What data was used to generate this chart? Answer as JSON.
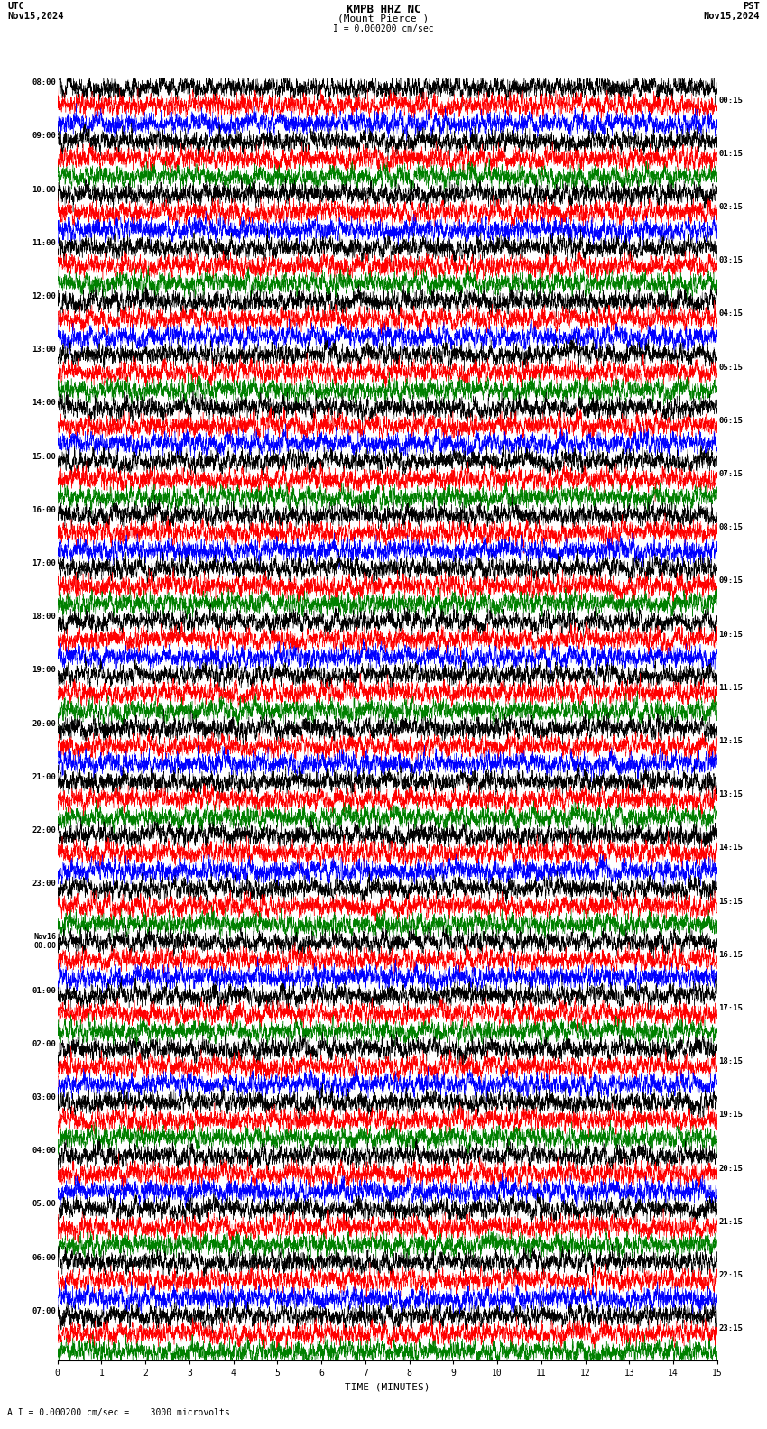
{
  "title_line1": "KMPB HHZ NC",
  "title_line2": "(Mount Pierce )",
  "scale_label": "I = 0.000200 cm/sec",
  "label_utc_top": "UTC",
  "label_utc_date": "Nov15,2024",
  "label_pst_top": "PST",
  "label_pst_date": "Nov15,2024",
  "bottom_label": "A I = 0.000200 cm/sec =    3000 microvolts",
  "xlabel": "TIME (MINUTES)",
  "left_labels_utc": [
    "08:00",
    "09:00",
    "10:00",
    "11:00",
    "12:00",
    "13:00",
    "14:00",
    "15:00",
    "16:00",
    "17:00",
    "18:00",
    "19:00",
    "20:00",
    "21:00",
    "22:00",
    "23:00",
    "Nov16\n00:00",
    "01:00",
    "02:00",
    "03:00",
    "04:00",
    "05:00",
    "06:00",
    "07:00"
  ],
  "right_labels_pst": [
    "00:15",
    "01:15",
    "02:15",
    "03:15",
    "04:15",
    "05:15",
    "06:15",
    "07:15",
    "08:15",
    "09:15",
    "10:15",
    "11:15",
    "12:15",
    "13:15",
    "14:15",
    "15:15",
    "16:15",
    "17:15",
    "18:15",
    "19:15",
    "20:15",
    "21:15",
    "22:15",
    "23:15"
  ],
  "n_rows": 24,
  "traces_per_row": 3,
  "minutes_per_row": 15,
  "row_color_sets": [
    [
      "black",
      "red",
      "blue"
    ],
    [
      "black",
      "red",
      "blue"
    ],
    [
      "black",
      "red",
      "blue"
    ],
    [
      "black",
      "red",
      "blue"
    ],
    [
      "black",
      "red",
      "blue"
    ],
    [
      "black",
      "red",
      "blue"
    ],
    [
      "black",
      "red",
      "blue"
    ],
    [
      "black",
      "red",
      "blue"
    ],
    [
      "black",
      "red",
      "blue"
    ],
    [
      "black",
      "red",
      "blue"
    ],
    [
      "black",
      "red",
      "blue"
    ],
    [
      "black",
      "red",
      "blue"
    ],
    [
      "black",
      "red",
      "blue"
    ],
    [
      "black",
      "red",
      "blue"
    ],
    [
      "black",
      "red",
      "blue"
    ],
    [
      "black",
      "red",
      "blue"
    ],
    [
      "black",
      "red",
      "blue"
    ],
    [
      "black",
      "red",
      "blue"
    ],
    [
      "black",
      "red",
      "blue"
    ],
    [
      "black",
      "red",
      "blue"
    ],
    [
      "black",
      "red",
      "blue"
    ],
    [
      "black",
      "red",
      "blue"
    ],
    [
      "black",
      "red",
      "blue"
    ],
    [
      "black",
      "red",
      "blue"
    ]
  ],
  "bg_color": "white",
  "trace_linewidth": 0.3,
  "noise_std": 1.0,
  "xticks": [
    0,
    1,
    2,
    3,
    4,
    5,
    6,
    7,
    8,
    9,
    10,
    11,
    12,
    13,
    14,
    15
  ],
  "xlim": [
    0,
    15
  ],
  "fig_width": 8.5,
  "fig_height": 15.84,
  "samples_per_minute": 400
}
